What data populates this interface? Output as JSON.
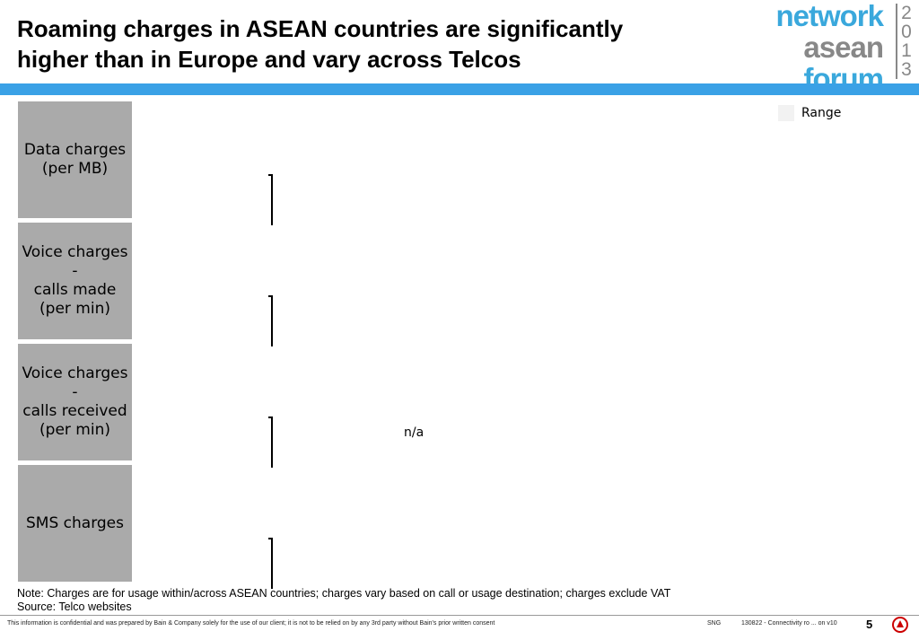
{
  "header": {
    "title_lines": [
      "Roaming charges in ASEAN countries are significantly",
      "higher than in Europe and vary across Telcos"
    ],
    "logo": {
      "words": [
        "network",
        "asean",
        "forum"
      ],
      "year_digits": [
        "2",
        "0",
        "1",
        "3"
      ]
    }
  },
  "legend": {
    "label": "Range"
  },
  "rows": [
    {
      "label_lines": [
        "Data charges",
        "(per MB)"
      ]
    },
    {
      "label_lines": [
        "Voice charges -",
        "calls made",
        "(per min)"
      ]
    },
    {
      "label_lines": [
        "Voice charges -",
        "calls received",
        "(per min)"
      ]
    },
    {
      "label_lines": [
        "SMS charges"
      ]
    }
  ],
  "annotation": "n/a",
  "note": "Note: Charges are for usage within/across ASEAN countries; charges vary based on call or usage destination; charges exclude VAT",
  "source": "Source: Telco websites",
  "footer": {
    "disclaimer": "This information is confidential and was prepared by Bain & Company solely for the use of our client; it is not to be relied on by any 3rd party without Bain's prior written consent",
    "office": "SNG",
    "doc": "130822 - Connectivity ro ... on v10",
    "page": "5"
  }
}
